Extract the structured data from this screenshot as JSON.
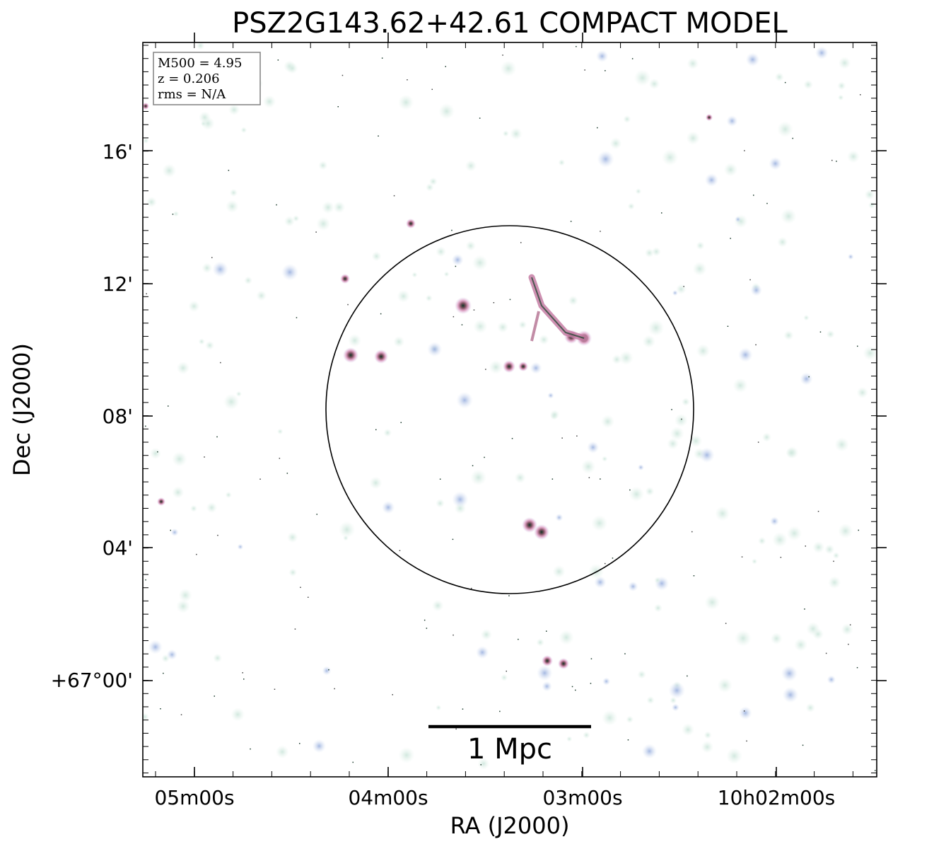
{
  "chart_data": {
    "type": "image",
    "title": "PSZ2G143.62+42.61 COMPACT MODEL",
    "xlabel": "RA (J2000)",
    "ylabel": "Dec (J2000)",
    "x_tick_labels": [
      "05m00s",
      "04m00s",
      "03m00s",
      "10h02m00s"
    ],
    "y_tick_labels": [
      "16'",
      "12'",
      "08'",
      "04'",
      "+67°00'"
    ],
    "info_box": {
      "lines": [
        "M500 = 4.95",
        "z = 0.206",
        "rms = N/A"
      ],
      "position": "top-left"
    },
    "scale_bar": {
      "label": "1 Mpc"
    },
    "circle": {
      "style": "black outline",
      "position": "center"
    },
    "colors": {
      "faint_source": "#dcefe6",
      "medium_source": "#c8d8ee",
      "bright_source": "#d88fb8",
      "core": "#0d3322",
      "axes": "#000000"
    },
    "grid": false
  }
}
